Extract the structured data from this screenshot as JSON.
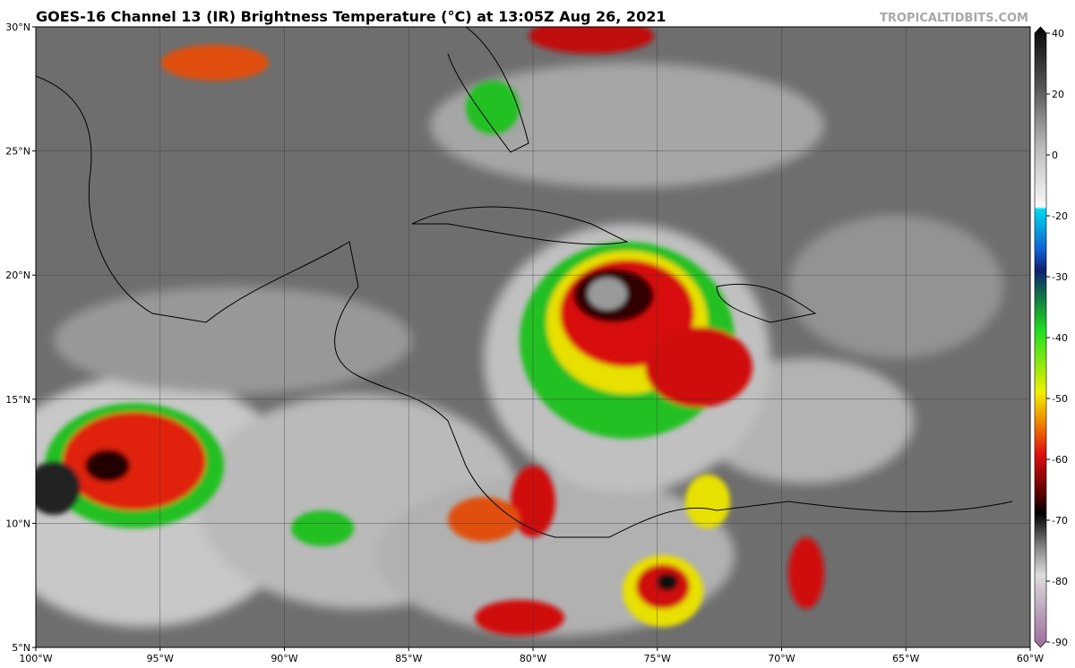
{
  "header": {
    "title": "GOES-16 Channel 13 (IR) Brightness Temperature (°C) at 13:05Z Aug 26, 2021",
    "credit": "TROPICALTIDBITS.COM"
  },
  "map": {
    "lat_labels": [
      "30°N",
      "25°N",
      "20°N",
      "15°N",
      "10°N",
      "5°N"
    ],
    "lon_labels": [
      "100°W",
      "95°W",
      "90°W",
      "85°W",
      "80°W",
      "75°W",
      "70°W",
      "65°W",
      "60°W"
    ]
  },
  "colorbar": {
    "ticks": [
      40,
      20,
      0,
      -20,
      -30,
      -40,
      -50,
      -60,
      -70,
      -80,
      -90
    ]
  }
}
